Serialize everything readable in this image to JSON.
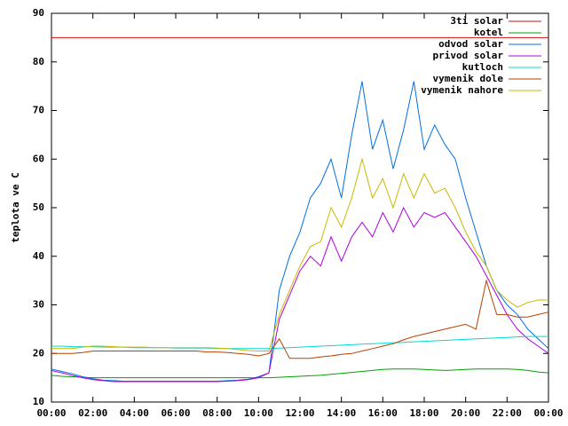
{
  "chart_data": {
    "type": "line",
    "y_label": "teplota ve C",
    "x": [
      0,
      0.5,
      1,
      1.5,
      2,
      2.5,
      3,
      3.5,
      4,
      4.5,
      5,
      5.5,
      6,
      6.5,
      7,
      7.5,
      8,
      8.5,
      9,
      9.5,
      10,
      10.5,
      11,
      11.5,
      12,
      12.5,
      13,
      13.5,
      14,
      14.5,
      15,
      15.5,
      16,
      16.5,
      17,
      17.5,
      18,
      18.5,
      19,
      19.5,
      20,
      20.5,
      21,
      21.5,
      22,
      22.5,
      23,
      23.5,
      24
    ],
    "xlim": [
      0,
      24
    ],
    "xticks": [
      {
        "value": 0,
        "label": "00:00"
      },
      {
        "value": 2,
        "label": "02:00"
      },
      {
        "value": 4,
        "label": "04:00"
      },
      {
        "value": 6,
        "label": "06:00"
      },
      {
        "value": 8,
        "label": "08:00"
      },
      {
        "value": 10,
        "label": "10:00"
      },
      {
        "value": 12,
        "label": "12:00"
      },
      {
        "value": 14,
        "label": "14:00"
      },
      {
        "value": 16,
        "label": "16:00"
      },
      {
        "value": 18,
        "label": "18:00"
      },
      {
        "value": 20,
        "label": "20:00"
      },
      {
        "value": 22,
        "label": "22:00"
      },
      {
        "value": 24,
        "label": "00:00"
      }
    ],
    "ylim": [
      10,
      90
    ],
    "yticks": [
      10,
      20,
      30,
      40,
      50,
      60,
      70,
      80,
      90
    ],
    "legend": "top-right",
    "series": [
      {
        "name": "3ti solar",
        "color": "#d01010",
        "values": [
          85,
          85,
          85,
          85,
          85,
          85,
          85,
          85,
          85,
          85,
          85,
          85,
          85,
          85,
          85,
          85,
          85,
          85,
          85,
          85,
          85,
          85,
          85,
          85,
          85,
          85,
          85,
          85,
          85,
          85,
          85,
          85,
          85,
          85,
          85,
          85,
          85,
          85,
          85,
          85,
          85,
          85,
          85,
          85,
          85,
          85,
          85,
          85,
          85
        ]
      },
      {
        "name": "kotel",
        "color": "#00a000",
        "values": [
          15.5,
          15.3,
          15.2,
          15.1,
          15,
          15,
          15,
          15,
          15,
          15,
          15,
          15,
          15,
          15,
          15,
          15,
          15,
          15,
          15,
          15,
          15,
          15.0,
          15.1,
          15.2,
          15.3,
          15.4,
          15.5,
          15.7,
          15.9,
          16.1,
          16.3,
          16.5,
          16.7,
          16.8,
          16.8,
          16.8,
          16.7,
          16.6,
          16.5,
          16.6,
          16.7,
          16.8,
          16.8,
          16.8,
          16.8,
          16.7,
          16.5,
          16.2,
          16.0
        ]
      },
      {
        "name": "odvod solar",
        "color": "#0070e0",
        "values": [
          16.8,
          16.3,
          15.8,
          15.2,
          14.8,
          14.5,
          14.4,
          14.3,
          14.3,
          14.3,
          14.3,
          14.3,
          14.3,
          14.3,
          14.3,
          14.3,
          14.3,
          14.4,
          14.5,
          14.7,
          15.2,
          16,
          33,
          40,
          45,
          52,
          55,
          60,
          52,
          65,
          76,
          62,
          68,
          58,
          66,
          76,
          62,
          67,
          63,
          60,
          52,
          45,
          38,
          33,
          30,
          28,
          25,
          23,
          21
        ]
      },
      {
        "name": "privod solar",
        "color": "#b000e0",
        "values": [
          16.5,
          16,
          15.5,
          15,
          14.6,
          14.4,
          14.2,
          14.2,
          14.2,
          14.2,
          14.2,
          14.2,
          14.2,
          14.2,
          14.2,
          14.2,
          14.2,
          14.3,
          14.4,
          14.6,
          15,
          16,
          27,
          32,
          37,
          40,
          38,
          44,
          39,
          44,
          47,
          44,
          49,
          45,
          50,
          46,
          49,
          48,
          49,
          46,
          43,
          40,
          36,
          32,
          28,
          25,
          23,
          21.5,
          20
        ]
      },
      {
        "name": "kutloch",
        "color": "#00d8d8",
        "values": [
          21.5,
          21.5,
          21.4,
          21.4,
          21.4,
          21.3,
          21.3,
          21.3,
          21.2,
          21.2,
          21.2,
          21.2,
          21.1,
          21.1,
          21.1,
          21.1,
          21.0,
          21.0,
          21.0,
          21.0,
          21.0,
          21.0,
          21.1,
          21.2,
          21.3,
          21.4,
          21.5,
          21.6,
          21.7,
          21.8,
          21.9,
          22.0,
          22.1,
          22.2,
          22.3,
          22.4,
          22.5,
          22.6,
          22.7,
          22.8,
          22.9,
          23.0,
          23.1,
          23.2,
          23.3,
          23.4,
          23.5,
          23.5,
          23.5
        ]
      },
      {
        "name": "vymenik dole",
        "color": "#b84000",
        "values": [
          20,
          20,
          20,
          20.2,
          20.5,
          20.5,
          20.5,
          20.5,
          20.5,
          20.5,
          20.5,
          20.5,
          20.5,
          20.5,
          20.5,
          20.3,
          20.3,
          20.2,
          20,
          19.8,
          19.5,
          20,
          23,
          19,
          19,
          19,
          19.3,
          19.5,
          19.8,
          20,
          20.5,
          21,
          21.5,
          22,
          22.8,
          23.5,
          24,
          24.5,
          25,
          25.5,
          26,
          25,
          35,
          28,
          28,
          27.5,
          27.5,
          28,
          28.5
        ]
      },
      {
        "name": "vymenik nahore",
        "color": "#c8b800",
        "values": [
          21,
          21,
          21,
          21.3,
          21.5,
          21.5,
          21.4,
          21.3,
          21.3,
          21.3,
          21.2,
          21.2,
          21.2,
          21.2,
          21.2,
          21.2,
          21.1,
          21,
          20.8,
          20.6,
          20.5,
          20.5,
          28,
          33,
          38,
          42,
          43,
          50,
          46,
          52,
          60,
          52,
          56,
          50,
          57,
          52,
          57,
          53,
          54,
          50,
          45,
          41,
          38,
          33,
          31,
          29.5,
          30.5,
          31,
          31
        ]
      }
    ]
  }
}
